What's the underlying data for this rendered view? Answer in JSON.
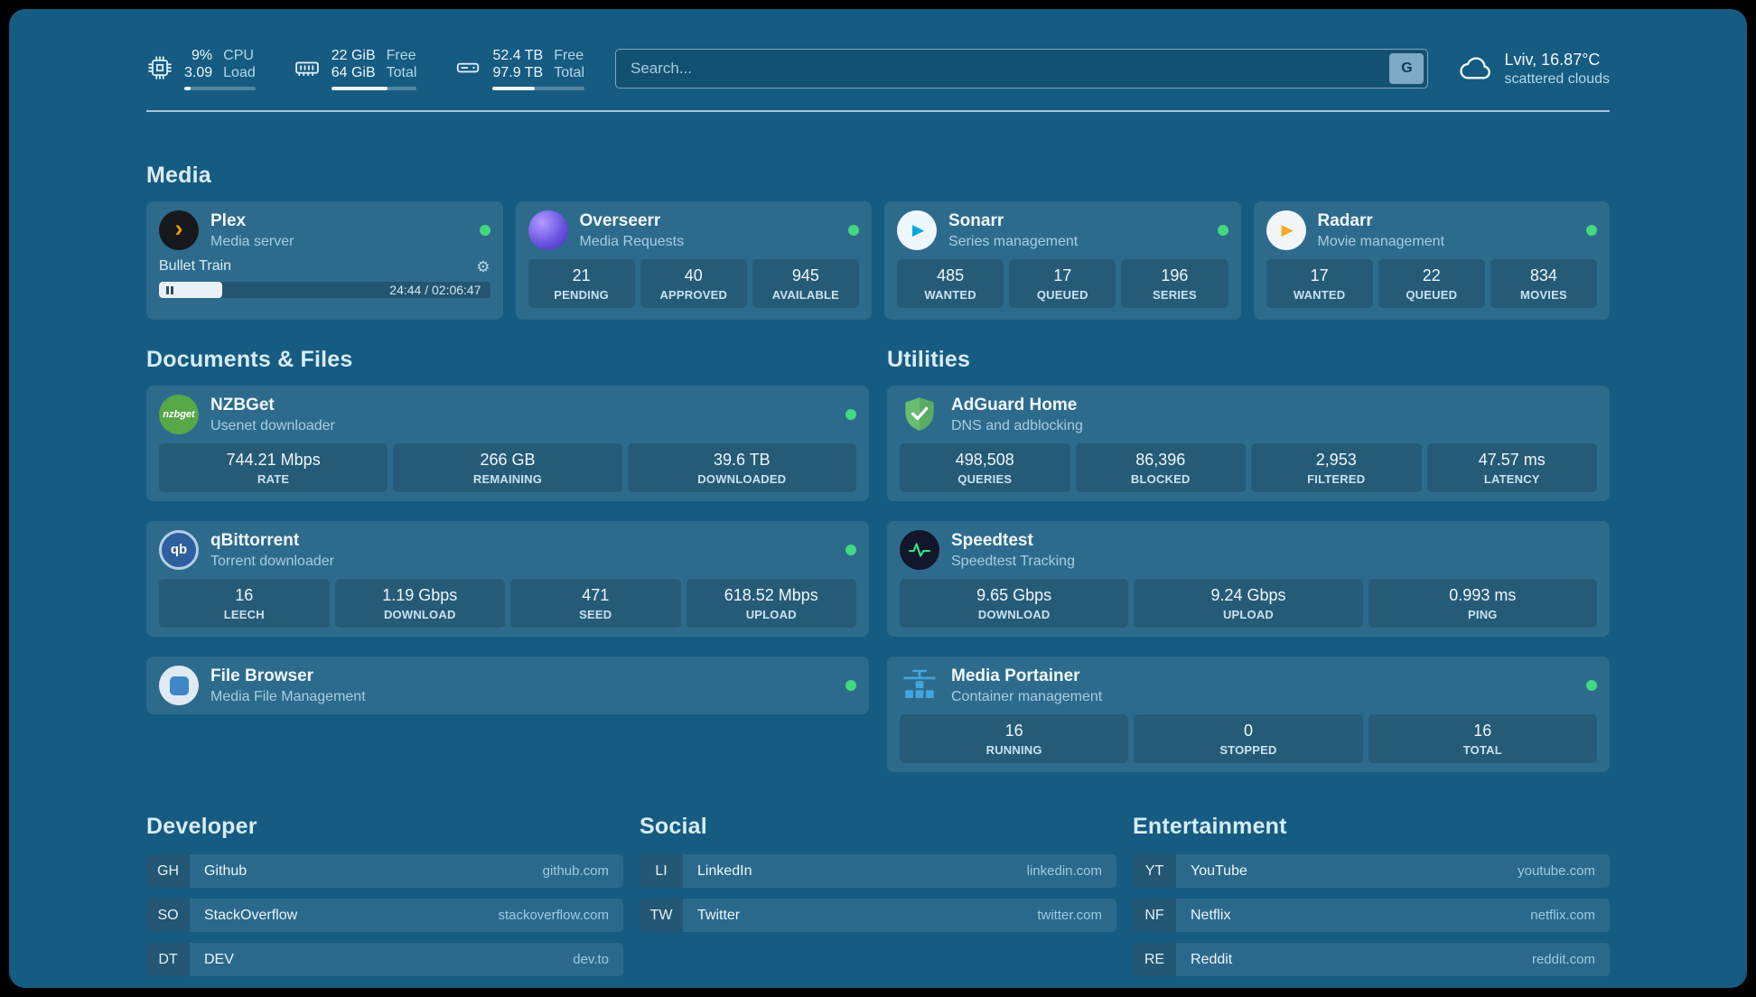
{
  "topbar": {
    "cpu": {
      "value1": "9%",
      "value2": "3.09",
      "label1": "CPU",
      "label2": "Load",
      "bar_pct": 9
    },
    "memory": {
      "value1": "22 GiB",
      "value2": "64 GiB",
      "label1": "Free",
      "label2": "Total",
      "bar_pct": 66
    },
    "disk": {
      "value1": "52.4 TB",
      "value2": "97.9 TB",
      "label1": "Free",
      "label2": "Total",
      "bar_pct": 46
    },
    "search": {
      "placeholder": "Search...",
      "provider_label": "G"
    },
    "weather": {
      "location": "Lviv, 16.87°C",
      "condition": "scattered clouds"
    }
  },
  "sections": {
    "media": "Media",
    "documents": "Documents & Files",
    "utilities": "Utilities",
    "developer": "Developer",
    "social": "Social",
    "entertainment": "Entertainment"
  },
  "services": {
    "plex": {
      "title": "Plex",
      "subtitle": "Media server",
      "now_playing": "Bullet Train",
      "time": "24:44 / 02:06:47",
      "progress_pct": 19
    },
    "overseerr": {
      "title": "Overseerr",
      "subtitle": "Media Requests",
      "stats": [
        {
          "value": "21",
          "label": "PENDING"
        },
        {
          "value": "40",
          "label": "APPROVED"
        },
        {
          "value": "945",
          "label": "AVAILABLE"
        }
      ]
    },
    "sonarr": {
      "title": "Sonarr",
      "subtitle": "Series management",
      "stats": [
        {
          "value": "485",
          "label": "WANTED"
        },
        {
          "value": "17",
          "label": "QUEUED"
        },
        {
          "value": "196",
          "label": "SERIES"
        }
      ]
    },
    "radarr": {
      "title": "Radarr",
      "subtitle": "Movie management",
      "stats": [
        {
          "value": "17",
          "label": "WANTED"
        },
        {
          "value": "22",
          "label": "QUEUED"
        },
        {
          "value": "834",
          "label": "MOVIES"
        }
      ]
    },
    "nzbget": {
      "title": "NZBGet",
      "subtitle": "Usenet downloader",
      "icon_text": "nzbget",
      "stats": [
        {
          "value": "744.21 Mbps",
          "label": "RATE"
        },
        {
          "value": "266 GB",
          "label": "REMAINING"
        },
        {
          "value": "39.6 TB",
          "label": "DOWNLOADED"
        }
      ]
    },
    "adguard": {
      "title": "AdGuard Home",
      "subtitle": "DNS and adblocking",
      "stats": [
        {
          "value": "498,508",
          "label": "QUERIES"
        },
        {
          "value": "86,396",
          "label": "BLOCKED"
        },
        {
          "value": "2,953",
          "label": "FILTERED"
        },
        {
          "value": "47.57 ms",
          "label": "LATENCY"
        }
      ]
    },
    "qbittorrent": {
      "title": "qBittorrent",
      "subtitle": "Torrent downloader",
      "icon_text": "qb",
      "stats": [
        {
          "value": "16",
          "label": "LEECH"
        },
        {
          "value": "1.19 Gbps",
          "label": "DOWNLOAD"
        },
        {
          "value": "471",
          "label": "SEED"
        },
        {
          "value": "618.52 Mbps",
          "label": "UPLOAD"
        }
      ]
    },
    "speedtest": {
      "title": "Speedtest",
      "subtitle": "Speedtest Tracking",
      "stats": [
        {
          "value": "9.65 Gbps",
          "label": "DOWNLOAD"
        },
        {
          "value": "9.24 Gbps",
          "label": "UPLOAD"
        },
        {
          "value": "0.993 ms",
          "label": "PING"
        }
      ]
    },
    "filebrowser": {
      "title": "File Browser",
      "subtitle": "Media File Management"
    },
    "portainer": {
      "title": "Media Portainer",
      "subtitle": "Container management",
      "stats": [
        {
          "value": "16",
          "label": "RUNNING"
        },
        {
          "value": "0",
          "label": "STOPPED"
        },
        {
          "value": "16",
          "label": "TOTAL"
        }
      ]
    }
  },
  "bookmarks": {
    "developer": [
      {
        "abbr": "GH",
        "name": "Github",
        "domain": "github.com"
      },
      {
        "abbr": "SO",
        "name": "StackOverflow",
        "domain": "stackoverflow.com"
      },
      {
        "abbr": "DT",
        "name": "DEV",
        "domain": "dev.to"
      }
    ],
    "social": [
      {
        "abbr": "LI",
        "name": "LinkedIn",
        "domain": "linkedin.com"
      },
      {
        "abbr": "TW",
        "name": "Twitter",
        "domain": "twitter.com"
      }
    ],
    "entertainment": [
      {
        "abbr": "YT",
        "name": "YouTube",
        "domain": "youtube.com"
      },
      {
        "abbr": "NF",
        "name": "Netflix",
        "domain": "netflix.com"
      },
      {
        "abbr": "RE",
        "name": "Reddit",
        "domain": "reddit.com"
      }
    ]
  },
  "colors": {
    "status_online": "#41d97f",
    "panel_bg": "#165b81",
    "plex_accent": "#e5a00d"
  }
}
